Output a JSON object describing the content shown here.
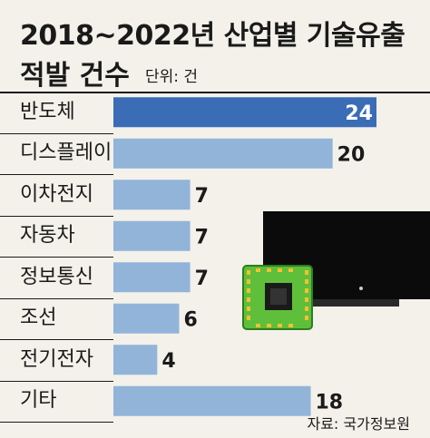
{
  "title_line1": "2018~2022년 산업별 기술유출",
  "title_line2": "적발 건수",
  "unit_label": "단위: 건",
  "source": "자료: 국가정보원",
  "colors": {
    "highlight": "#3a6db5",
    "bar": "#92b4d9",
    "background": "#f3f1ea",
    "text": "#1a1a1a"
  },
  "chart_data": {
    "type": "bar",
    "orientation": "horizontal",
    "categories": [
      "반도체",
      "디스플레이",
      "이차전지",
      "자동차",
      "정보통신",
      "조선",
      "전기전자",
      "기타"
    ],
    "values": [
      24,
      20,
      7,
      7,
      7,
      6,
      4,
      18
    ],
    "highlight_index": 0,
    "xlim": [
      0,
      24
    ],
    "grid": false,
    "legend": "none"
  }
}
